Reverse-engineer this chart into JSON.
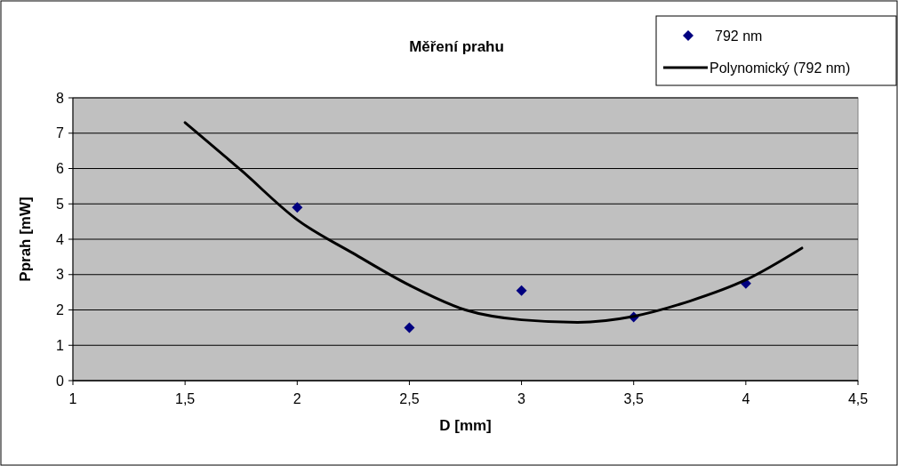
{
  "chart_data": {
    "type": "scatter",
    "title": "Měření prahu",
    "xlabel": "D [mm]",
    "ylabel": "Pprah [mW]",
    "xlim": [
      1,
      4.5
    ],
    "xticks": [
      1,
      {
        "value": 1.5,
        "label": "1,5"
      },
      2,
      {
        "value": 2.5,
        "label": "2,5"
      },
      3,
      {
        "value": 3.5,
        "label": "3,5"
      },
      4,
      {
        "value": 4.5,
        "label": "4,5"
      }
    ],
    "ylim": [
      0,
      8
    ],
    "yticks": [
      0,
      1,
      2,
      3,
      4,
      5,
      6,
      7,
      8
    ],
    "grid": "y",
    "legend": "top right",
    "series": [
      {
        "name": "792 nm",
        "marker": "diamond",
        "color": "#000080",
        "x": [
          2,
          2.5,
          3,
          3.5,
          4
        ],
        "values": [
          4.9,
          1.5,
          2.55,
          1.8,
          2.75
        ]
      },
      {
        "name": "Polynomický (792 nm)",
        "type": "line",
        "marker": "none",
        "color": "#000000",
        "x": [
          1.5,
          1.75,
          2,
          2.25,
          2.5,
          2.75,
          3,
          3.25,
          3.5,
          3.75,
          4,
          4.25
        ],
        "values": [
          7.3,
          5.95,
          4.55,
          3.6,
          2.7,
          2.0,
          1.72,
          1.65,
          1.82,
          2.25,
          2.85,
          3.75
        ]
      }
    ]
  }
}
